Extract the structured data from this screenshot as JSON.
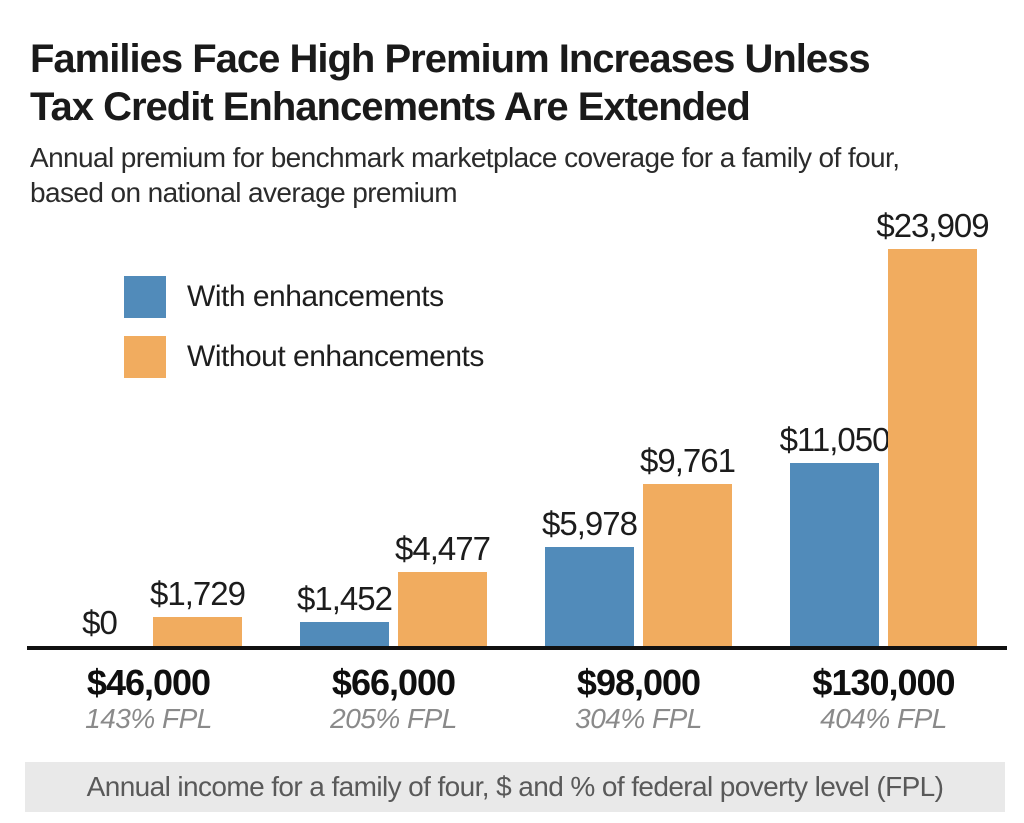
{
  "header": {
    "title_line1": "Families Face High Premium Increases Unless",
    "title_line2": "Tax Credit Enhancements Are Extended",
    "subtitle_line1": "Annual premium for benchmark marketplace coverage for a family of four,",
    "subtitle_line2": "based on national average premium"
  },
  "legend": {
    "items": [
      {
        "label": "With enhancements",
        "color": "#518bba"
      },
      {
        "label": "Without enhancements",
        "color": "#f1ac5f"
      }
    ]
  },
  "chart_data": {
    "type": "bar",
    "title": "Families Face High Premium Increases Unless Tax Credit Enhancements Are Extended",
    "subtitle": "Annual premium for benchmark marketplace coverage for a family of four, based on national average premium",
    "categories": [
      "$46,000",
      "$66,000",
      "$98,000",
      "$130,000"
    ],
    "category_sublabels": [
      "143% FPL",
      "205% FPL",
      "304% FPL",
      "404% FPL"
    ],
    "series": [
      {
        "name": "With enhancements",
        "color": "#518bba",
        "values": [
          0,
          1452,
          5978,
          11050
        ],
        "value_labels": [
          "$0",
          "$1,452",
          "$5,978",
          "$11,050"
        ]
      },
      {
        "name": "Without enhancements",
        "color": "#f1ac5f",
        "values": [
          1729,
          4477,
          9761,
          23909
        ],
        "value_labels": [
          "$1,729",
          "$4,477",
          "$9,761",
          "$23,909"
        ]
      }
    ],
    "xlabel": "Annual income for a family of four, $ and % of federal poverty level (FPL)",
    "ylabel": "",
    "ylim": [
      0,
      23909
    ],
    "grid": false,
    "value_labels": true,
    "legend_position": "top-left",
    "x_axis_line": true,
    "y_axis_visible": false
  },
  "footer": {
    "note": "Annual income for a family of four, $ and % of federal poverty level (FPL)"
  }
}
